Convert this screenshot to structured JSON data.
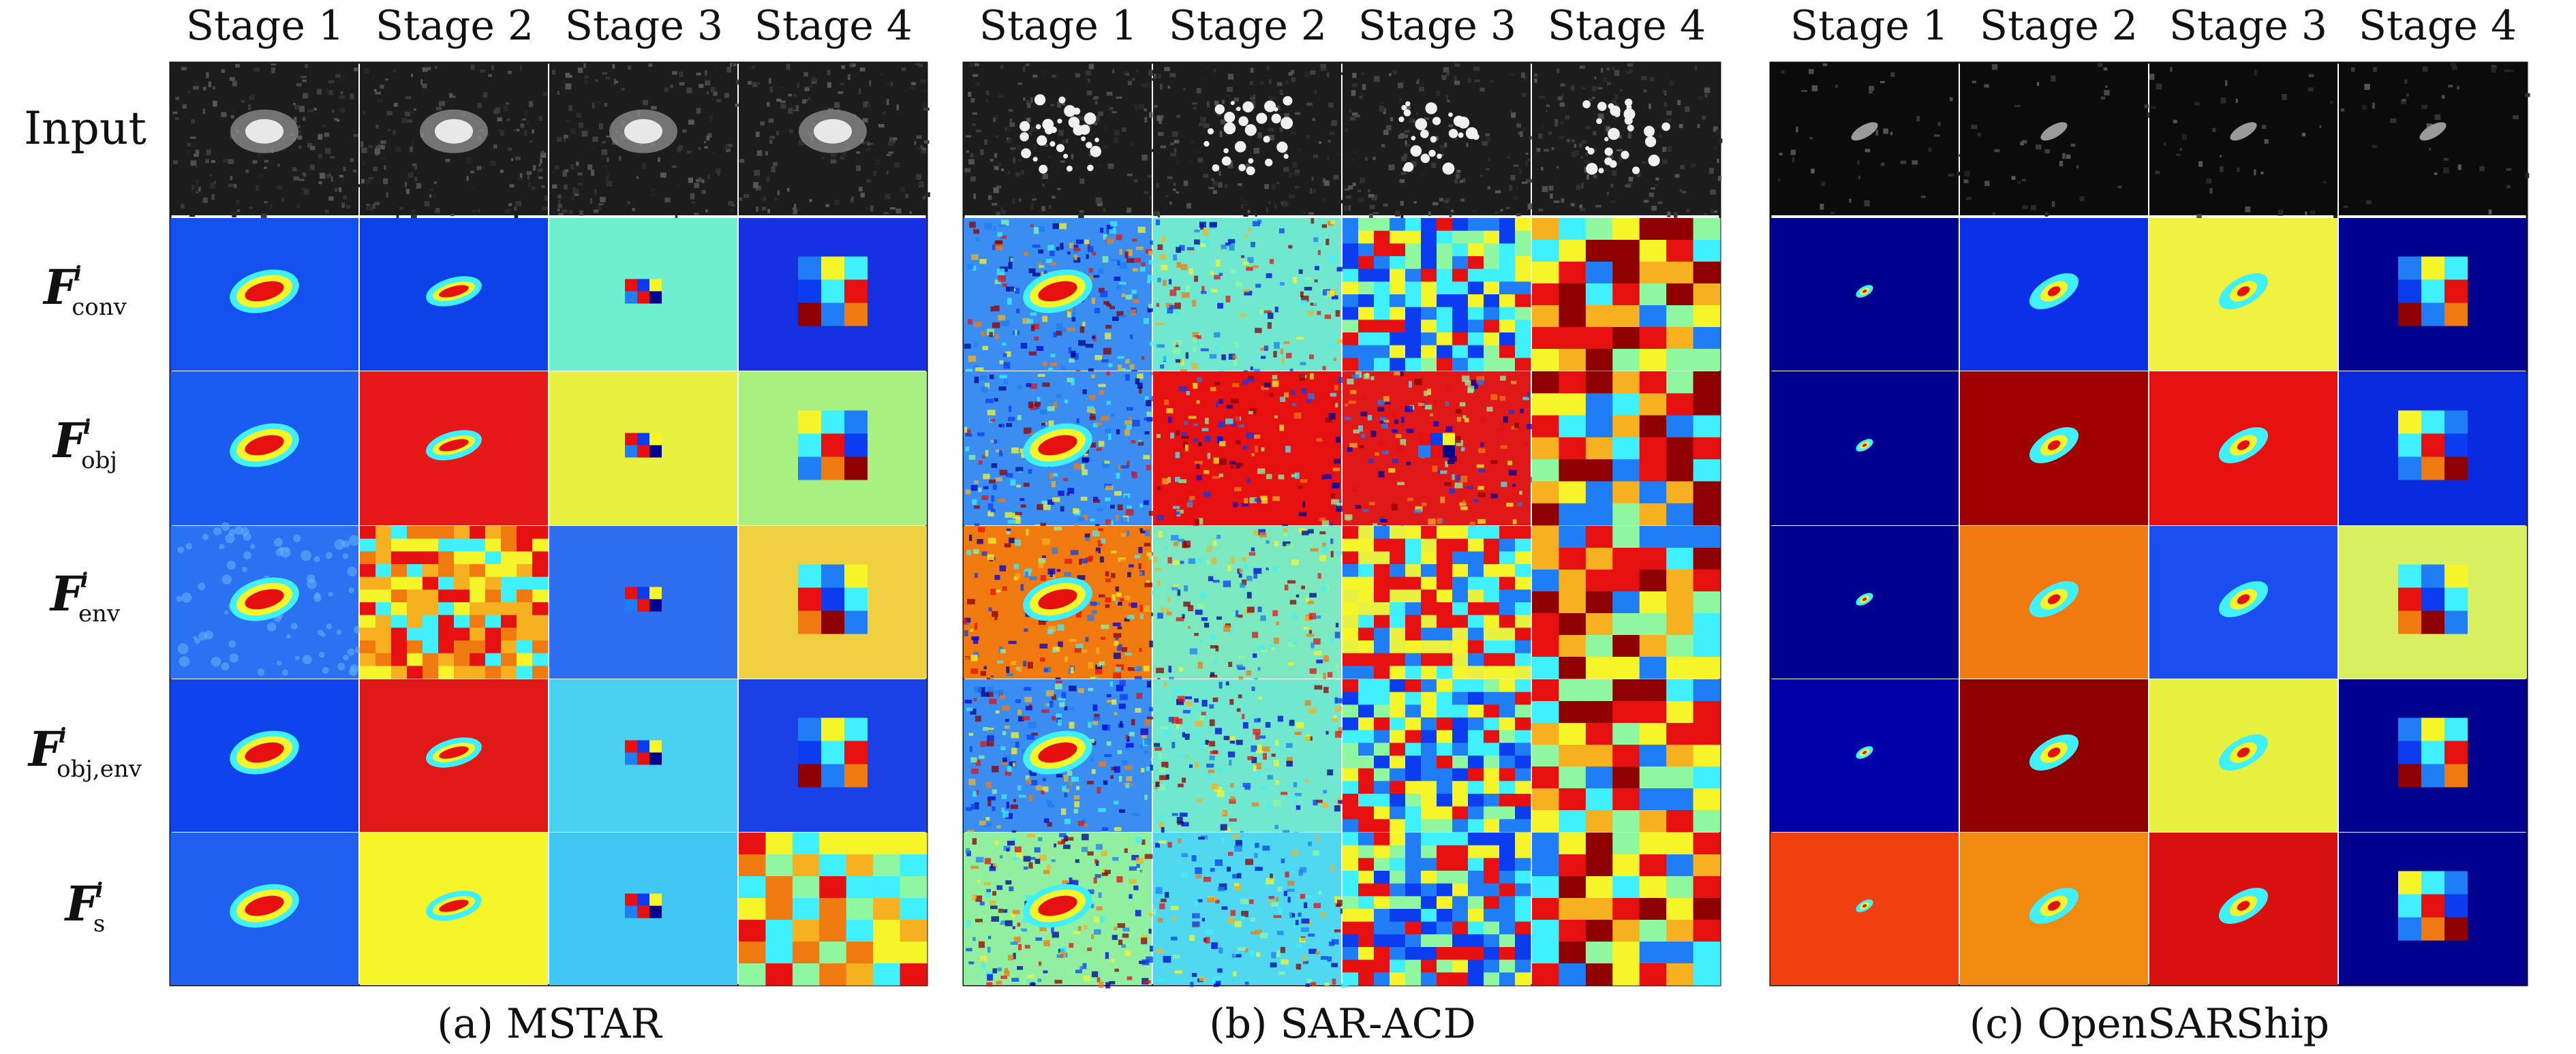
{
  "stage_headers": [
    "Stage 1",
    "Stage 2",
    "Stage 3",
    "Stage 4"
  ],
  "rows": [
    {
      "label": "Input"
    },
    {
      "label": "F",
      "sup": "i",
      "sub": "conv"
    },
    {
      "label": "F",
      "sup": "i",
      "sub": "obj"
    },
    {
      "label": "F",
      "sup": "i",
      "sub": "env"
    },
    {
      "label": "F",
      "sup": "i",
      "sub": "obj,env"
    },
    {
      "label": "F",
      "sup": "i",
      "sub": "s"
    }
  ],
  "panels": [
    {
      "caption": "(a) MSTAR"
    },
    {
      "caption": "(b) SAR-ACD"
    },
    {
      "caption": "(c) OpenSARShip"
    }
  ],
  "colors": {
    "colormap": "jet",
    "dark_blue": "#00008f",
    "blue": "#0b3cf0",
    "cyan": "#3ff0ff",
    "yellow": "#f5f52a",
    "orange": "#f07a10",
    "red": "#e61010",
    "dark_red": "#8f0000"
  }
}
